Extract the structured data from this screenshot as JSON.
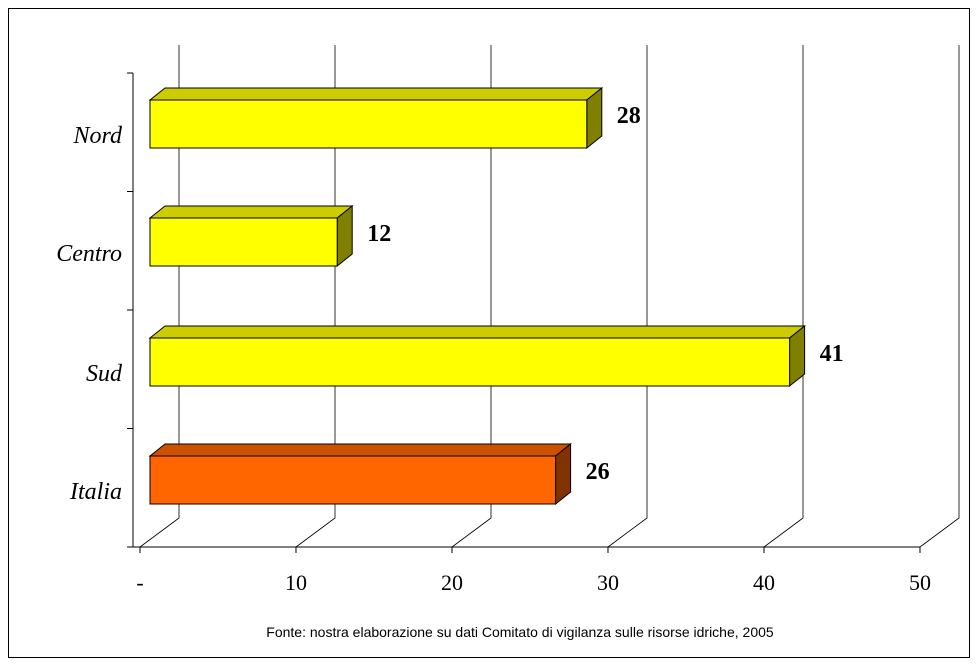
{
  "chart_data": {
    "type": "bar3d",
    "orientation": "horizontal",
    "categories": [
      "Nord",
      "Centro",
      "Sud",
      "Italia"
    ],
    "values": [
      28,
      12,
      41,
      26
    ],
    "colors": [
      "#ffff00",
      "#ffff00",
      "#ffff00",
      "#ff6600"
    ],
    "xlim": [
      0,
      50
    ],
    "xticks": [
      {
        "value": 0,
        "label": "-"
      },
      10,
      20,
      30,
      40,
      50
    ],
    "grid": true,
    "source": "Fonte: nostra elaborazione su dati Comitato di vigilanza sulle risorse idriche, 2005"
  }
}
